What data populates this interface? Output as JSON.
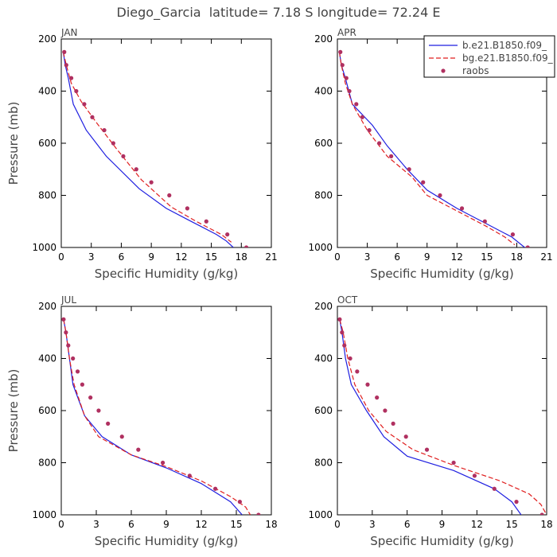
{
  "title": "Diego_Garcia  latitude= 7.18 S longitude= 72.24 E",
  "colors": {
    "model1": "#1f1fe0",
    "model2": "#e01f1f",
    "obs": "#b03060",
    "axis": "#000000",
    "text": "#444444"
  },
  "chart_data": [
    {
      "type": "line",
      "panel_label": "JAN",
      "xlabel": "Specific Humidity (g/kg)",
      "ylabel": "Pressure (mb)",
      "xlim": [
        0,
        21
      ],
      "ylim": [
        1000,
        200
      ],
      "xticks": [
        0,
        3,
        6,
        9,
        12,
        15,
        18,
        21
      ],
      "yticks": [
        200,
        400,
        600,
        800,
        1000
      ],
      "legend": null,
      "series": [
        {
          "name": "b.e21.B1850.f09_",
          "style": "solid",
          "x": [
            0.2,
            0.4,
            0.7,
            1.2,
            2.5,
            4.5,
            7.8,
            10.5,
            13.0,
            15.5,
            16.5,
            17.2
          ],
          "y": [
            250,
            300,
            350,
            450,
            550,
            650,
            775,
            850,
            900,
            950,
            975,
            1000
          ]
        },
        {
          "name": "bg.e21.B1850.f09_",
          "style": "dashed",
          "x": [
            0.2,
            0.5,
            1.0,
            2.0,
            3.5,
            5.5,
            8.0,
            11.0,
            13.5,
            16.0,
            17.0
          ],
          "y": [
            250,
            300,
            370,
            440,
            520,
            620,
            740,
            845,
            900,
            950,
            980
          ]
        },
        {
          "name": "raobs",
          "style": "points",
          "x": [
            0.3,
            0.5,
            1.0,
            1.5,
            2.3,
            3.1,
            4.3,
            5.2,
            6.2,
            7.5,
            9.0,
            10.8,
            12.6,
            14.5,
            16.6,
            18.5
          ],
          "y": [
            250,
            300,
            350,
            400,
            450,
            500,
            550,
            600,
            650,
            700,
            750,
            800,
            850,
            900,
            950,
            1000
          ]
        }
      ]
    },
    {
      "type": "line",
      "panel_label": "APR",
      "xlabel": "Specific Humidity (g/kg)",
      "ylabel": "",
      "xlim": [
        0,
        21
      ],
      "ylim": [
        1000,
        200
      ],
      "xticks": [
        0,
        3,
        6,
        9,
        12,
        15,
        18,
        21
      ],
      "yticks": [
        200,
        400,
        600,
        800,
        1000
      ],
      "legend": "top-right",
      "series": [
        {
          "name": "b.e21.B1850.f09_",
          "style": "solid",
          "x": [
            0.2,
            0.4,
            0.8,
            1.5,
            3.5,
            5.0,
            7.0,
            9.0,
            12.0,
            15.0,
            17.5,
            18.8
          ],
          "y": [
            250,
            300,
            350,
            450,
            530,
            610,
            700,
            780,
            850,
            910,
            960,
            1000
          ]
        },
        {
          "name": "bg.e21.B1850.f09_",
          "style": "dashed",
          "x": [
            0.2,
            0.4,
            0.8,
            1.5,
            3.0,
            5.0,
            7.5,
            9.0,
            12.0,
            15.0,
            16.8,
            17.8
          ],
          "y": [
            250,
            300,
            370,
            450,
            550,
            650,
            730,
            800,
            860,
            920,
            960,
            990
          ]
        },
        {
          "name": "raobs",
          "style": "points",
          "x": [
            0.3,
            0.5,
            0.9,
            1.2,
            1.9,
            2.5,
            3.2,
            4.2,
            5.4,
            7.2,
            8.6,
            10.3,
            12.5,
            14.8,
            17.6,
            19.1
          ],
          "y": [
            250,
            300,
            350,
            400,
            450,
            500,
            550,
            600,
            650,
            700,
            750,
            800,
            850,
            900,
            950,
            1000
          ]
        }
      ]
    },
    {
      "type": "line",
      "panel_label": "JUL",
      "xlabel": "Specific Humidity (g/kg)",
      "ylabel": "Pressure (mb)",
      "xlim": [
        0,
        18
      ],
      "ylim": [
        1000,
        200
      ],
      "xticks": [
        0,
        3,
        6,
        9,
        12,
        15,
        18
      ],
      "yticks": [
        200,
        400,
        600,
        800,
        1000
      ],
      "legend": null,
      "series": [
        {
          "name": "b.e21.B1850.f09_",
          "style": "solid",
          "x": [
            0.2,
            0.4,
            0.7,
            1.0,
            2.0,
            3.5,
            6.0,
            9.0,
            12.0,
            14.5,
            15.5
          ],
          "y": [
            250,
            300,
            400,
            500,
            620,
            700,
            770,
            820,
            880,
            950,
            1000
          ]
        },
        {
          "name": "bg.e21.B1850.f09_",
          "style": "dashed",
          "x": [
            0.2,
            0.4,
            0.7,
            1.1,
            2.0,
            3.2,
            6.0,
            9.0,
            12.0,
            14.5,
            15.8,
            16.2
          ],
          "y": [
            250,
            300,
            400,
            500,
            620,
            700,
            770,
            815,
            870,
            930,
            970,
            1000
          ]
        },
        {
          "name": "raobs",
          "style": "points",
          "x": [
            0.2,
            0.4,
            0.6,
            1.0,
            1.4,
            1.8,
            2.5,
            3.2,
            4.0,
            5.2,
            6.6,
            8.7,
            11.0,
            13.2,
            15.3,
            16.9
          ],
          "y": [
            250,
            300,
            350,
            400,
            450,
            500,
            550,
            600,
            650,
            700,
            750,
            800,
            850,
            900,
            950,
            1000
          ]
        }
      ]
    },
    {
      "type": "line",
      "panel_label": "OCT",
      "xlabel": "Specific Humidity (g/kg)",
      "ylabel": "",
      "xlim": [
        0,
        18
      ],
      "ylim": [
        1000,
        200
      ],
      "xticks": [
        0,
        3,
        6,
        9,
        12,
        15,
        18
      ],
      "yticks": [
        200,
        400,
        600,
        800,
        1000
      ],
      "legend": null,
      "series": [
        {
          "name": "b.e21.B1850.f09_",
          "style": "solid",
          "x": [
            0.2,
            0.4,
            0.7,
            1.2,
            2.5,
            4.0,
            6.0,
            10.0,
            13.5,
            15.0,
            15.8
          ],
          "y": [
            250,
            300,
            400,
            500,
            600,
            700,
            775,
            830,
            900,
            950,
            1000
          ]
        },
        {
          "name": "bg.e21.B1850.f09_",
          "style": "dashed",
          "x": [
            0.2,
            0.5,
            0.9,
            1.5,
            2.7,
            4.2,
            6.5,
            10.0,
            14.0,
            16.5,
            17.5,
            18.0
          ],
          "y": [
            250,
            300,
            400,
            500,
            600,
            680,
            750,
            810,
            870,
            920,
            960,
            1000
          ]
        },
        {
          "name": "raobs",
          "style": "points",
          "x": [
            0.2,
            0.4,
            0.6,
            1.1,
            1.7,
            2.6,
            3.4,
            4.1,
            4.8,
            5.9,
            7.7,
            10.0,
            11.8,
            13.5,
            15.4,
            17.6
          ],
          "y": [
            250,
            300,
            350,
            400,
            450,
            500,
            550,
            600,
            650,
            700,
            750,
            800,
            850,
            900,
            950,
            1000
          ]
        }
      ]
    }
  ]
}
